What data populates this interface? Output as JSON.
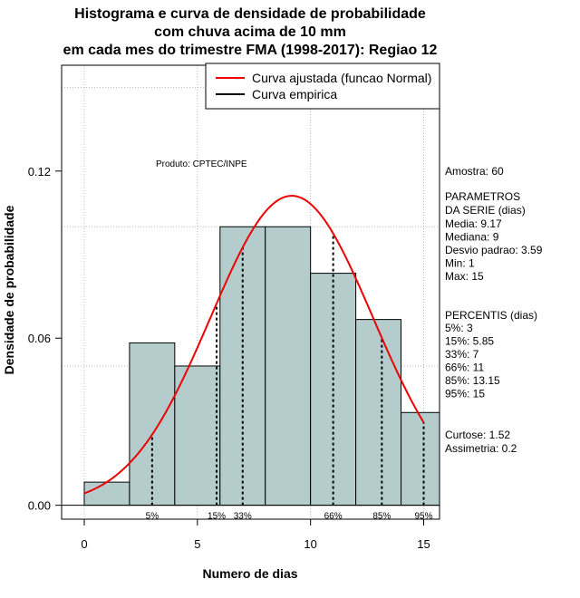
{
  "chart_data": {
    "type": "bar",
    "title_lines": [
      "Histograma e curva de densidade de probabilidade",
      "com chuva acima de 10 mm",
      "em cada mes do trimestre FMA (1998-2017): Regiao 12"
    ],
    "xlabel": "Numero de dias",
    "ylabel": "Densidade de probabilidade",
    "xlim": [
      -1,
      15.7
    ],
    "ylim": [
      -0.005,
      0.158
    ],
    "x_ticks": [
      0,
      5,
      10,
      15
    ],
    "y_ticks": [
      0.0,
      0.06,
      0.12
    ],
    "y_tick_labels": [
      "0.00",
      "0.06",
      "0.12"
    ],
    "grid_x": [
      0,
      5,
      10,
      15
    ],
    "grid_y": [
      0.05,
      0.1,
      0.15
    ],
    "bins": [
      {
        "x0": 0,
        "x1": 2,
        "density": 0.0083
      },
      {
        "x0": 2,
        "x1": 4,
        "density": 0.0583
      },
      {
        "x0": 4,
        "x1": 6,
        "density": 0.05
      },
      {
        "x0": 6,
        "x1": 8,
        "density": 0.1
      },
      {
        "x0": 8,
        "x1": 10,
        "density": 0.1
      },
      {
        "x0": 10,
        "x1": 12,
        "density": 0.0833
      },
      {
        "x0": 12,
        "x1": 14,
        "density": 0.0667
      },
      {
        "x0": 14,
        "x1": 16,
        "density": 0.0333
      }
    ],
    "fitted_curve": {
      "name": "Curva ajustada (funcao Normal)",
      "mean": 9.17,
      "sd": 3.59,
      "x_range": [
        0,
        15
      ],
      "color": "#ee0000"
    },
    "empirical_curve": {
      "name": "Curva empirica",
      "color": "#000000"
    },
    "percentiles": [
      {
        "label": "5%",
        "x": 3
      },
      {
        "label": "15%",
        "x": 5.85
      },
      {
        "label": "33%",
        "x": 7
      },
      {
        "label": "66%",
        "x": 11
      },
      {
        "label": "85%",
        "x": 13.15
      },
      {
        "label": "95%",
        "x": 15
      }
    ],
    "bar_color": "#b4cccc",
    "product_note": "Produto: CPTEC/INPE",
    "legend_position": "top-right"
  },
  "side_panel": {
    "sample": "Amostra: 60",
    "params_title": " PARAMETROS",
    "params_subtitle": "DA SERIE (dias)",
    "params": [
      "  Media: 9.17",
      "  Mediana: 9",
      "  Desvio padrao: 3.59",
      "  Min: 1",
      "  Max: 15"
    ],
    "percentis_title": "PERCENTIS (dias)",
    "percentis": [
      "  5%: 3",
      "  15%: 5.85",
      "  33%: 7",
      "  66%: 11",
      "  85%: 13.15",
      "  95%: 15"
    ],
    "kurtosis": "  Curtose: 1.52",
    "skewness": "  Assimetria: 0.2"
  }
}
